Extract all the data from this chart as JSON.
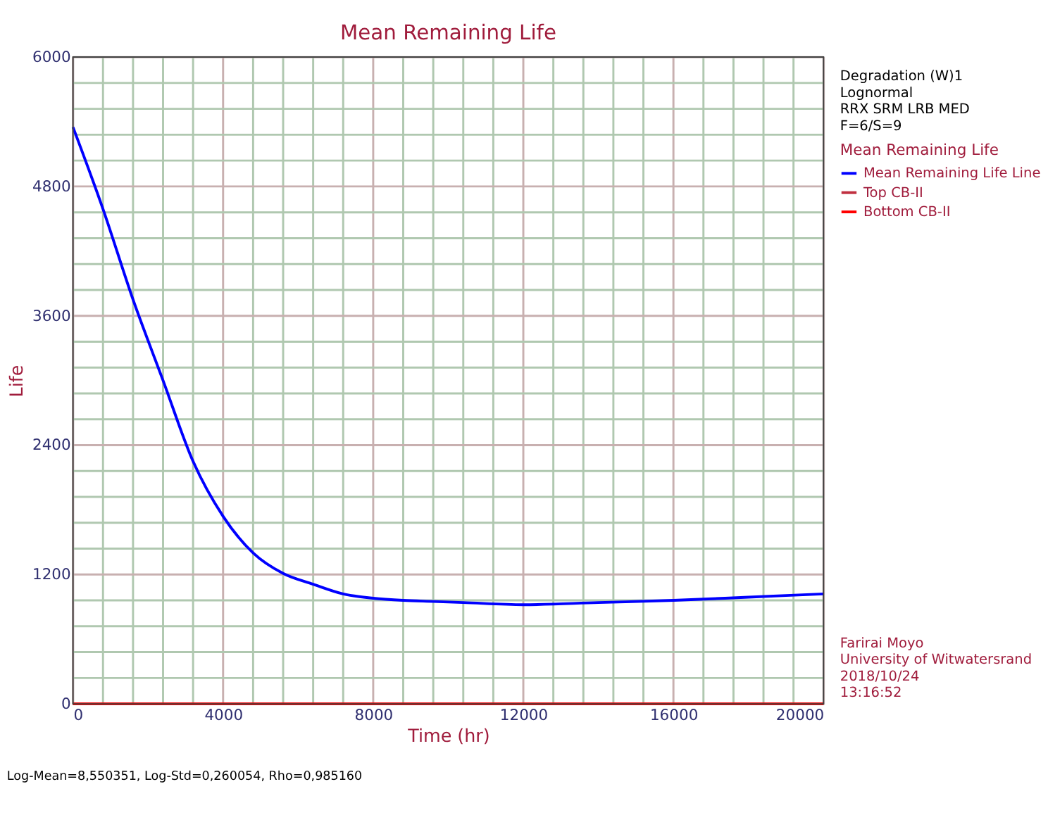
{
  "chart_data": {
    "type": "line",
    "title": "Mean Remaining Life",
    "xlabel": "Time (hr)",
    "ylabel": "Life",
    "legend_title": "Mean Remaining Life",
    "xlim": [
      0,
      20000
    ],
    "ylim": [
      0,
      6000
    ],
    "xticks": [
      0,
      {
        "value": 800,
        "label": null
      },
      {
        "value": 1600,
        "label": null
      },
      {
        "value": 2400,
        "label": null
      },
      {
        "value": 3200,
        "label": null
      },
      4000,
      {
        "value": 4800,
        "label": null
      },
      {
        "value": 5600,
        "label": null
      },
      {
        "value": 6400,
        "label": null
      },
      {
        "value": 7200,
        "label": null
      },
      8000,
      {
        "value": 8800,
        "label": null
      },
      {
        "value": 9600,
        "label": null
      },
      {
        "value": 10400,
        "label": null
      },
      {
        "value": 11200,
        "label": null
      },
      12000,
      {
        "value": 12800,
        "label": null
      },
      {
        "value": 13600,
        "label": null
      },
      {
        "value": 14400,
        "label": null
      },
      {
        "value": 15200,
        "label": null
      },
      16000,
      {
        "value": 16800,
        "label": null
      },
      {
        "value": 17600,
        "label": null
      },
      {
        "value": 18400,
        "label": null
      },
      {
        "value": 19200,
        "label": null
      },
      20000
    ],
    "yticks": [
      0,
      {
        "value": 240,
        "label": null
      },
      {
        "value": 480,
        "label": null
      },
      {
        "value": 720,
        "label": null
      },
      {
        "value": 960,
        "label": null
      },
      1200,
      {
        "value": 1440,
        "label": null
      },
      {
        "value": 1680,
        "label": null
      },
      {
        "value": 1920,
        "label": null
      },
      {
        "value": 2160,
        "label": null
      },
      2400,
      {
        "value": 2640,
        "label": null
      },
      {
        "value": 2880,
        "label": null
      },
      {
        "value": 3120,
        "label": null
      },
      {
        "value": 3360,
        "label": null
      },
      3600,
      {
        "value": 3840,
        "label": null
      },
      {
        "value": 4080,
        "label": null
      },
      {
        "value": 4320,
        "label": null
      },
      {
        "value": 4560,
        "label": null
      },
      4800,
      {
        "value": 5040,
        "label": null
      },
      {
        "value": 5280,
        "label": null
      },
      {
        "value": 5520,
        "label": null
      },
      {
        "value": 5760,
        "label": null
      },
      6000
    ],
    "grid": true,
    "legend": "right",
    "marker": "none",
    "line_style": "solid",
    "series": [
      {
        "name": "Mean Remaining Life Line",
        "color": "#0000ff",
        "x": [
          0,
          800,
          1600,
          2400,
          3200,
          4000,
          4800,
          5600,
          6400,
          7200,
          8000,
          8800,
          9600,
          10400,
          12000,
          14000,
          16000,
          18000,
          20000
        ],
        "values": [
          5350,
          4590,
          3750,
          3000,
          2250,
          1740,
          1400,
          1210,
          1110,
          1020,
          980,
          960,
          950,
          940,
          920,
          940,
          960,
          990,
          1020
        ]
      },
      {
        "name": "Top CB-II",
        "color": "#c03040",
        "x": [
          0,
          20000
        ],
        "values": [
          0,
          0
        ]
      },
      {
        "name": "Bottom CB-II",
        "color": "#ff0000",
        "x": [
          0,
          20000
        ],
        "values": [
          0,
          0
        ]
      }
    ],
    "annotations": [
      "Degradation (W)1",
      "Lognormal",
      "RRX SRM LRB MED",
      "F=6/S=9",
      "Farirai Moyo",
      "University of Witwatersrand",
      "2018/10/24",
      "13:16:52",
      "Log-Mean=8,550351, Log-Std=0,260054, Rho=0,985160"
    ]
  }
}
